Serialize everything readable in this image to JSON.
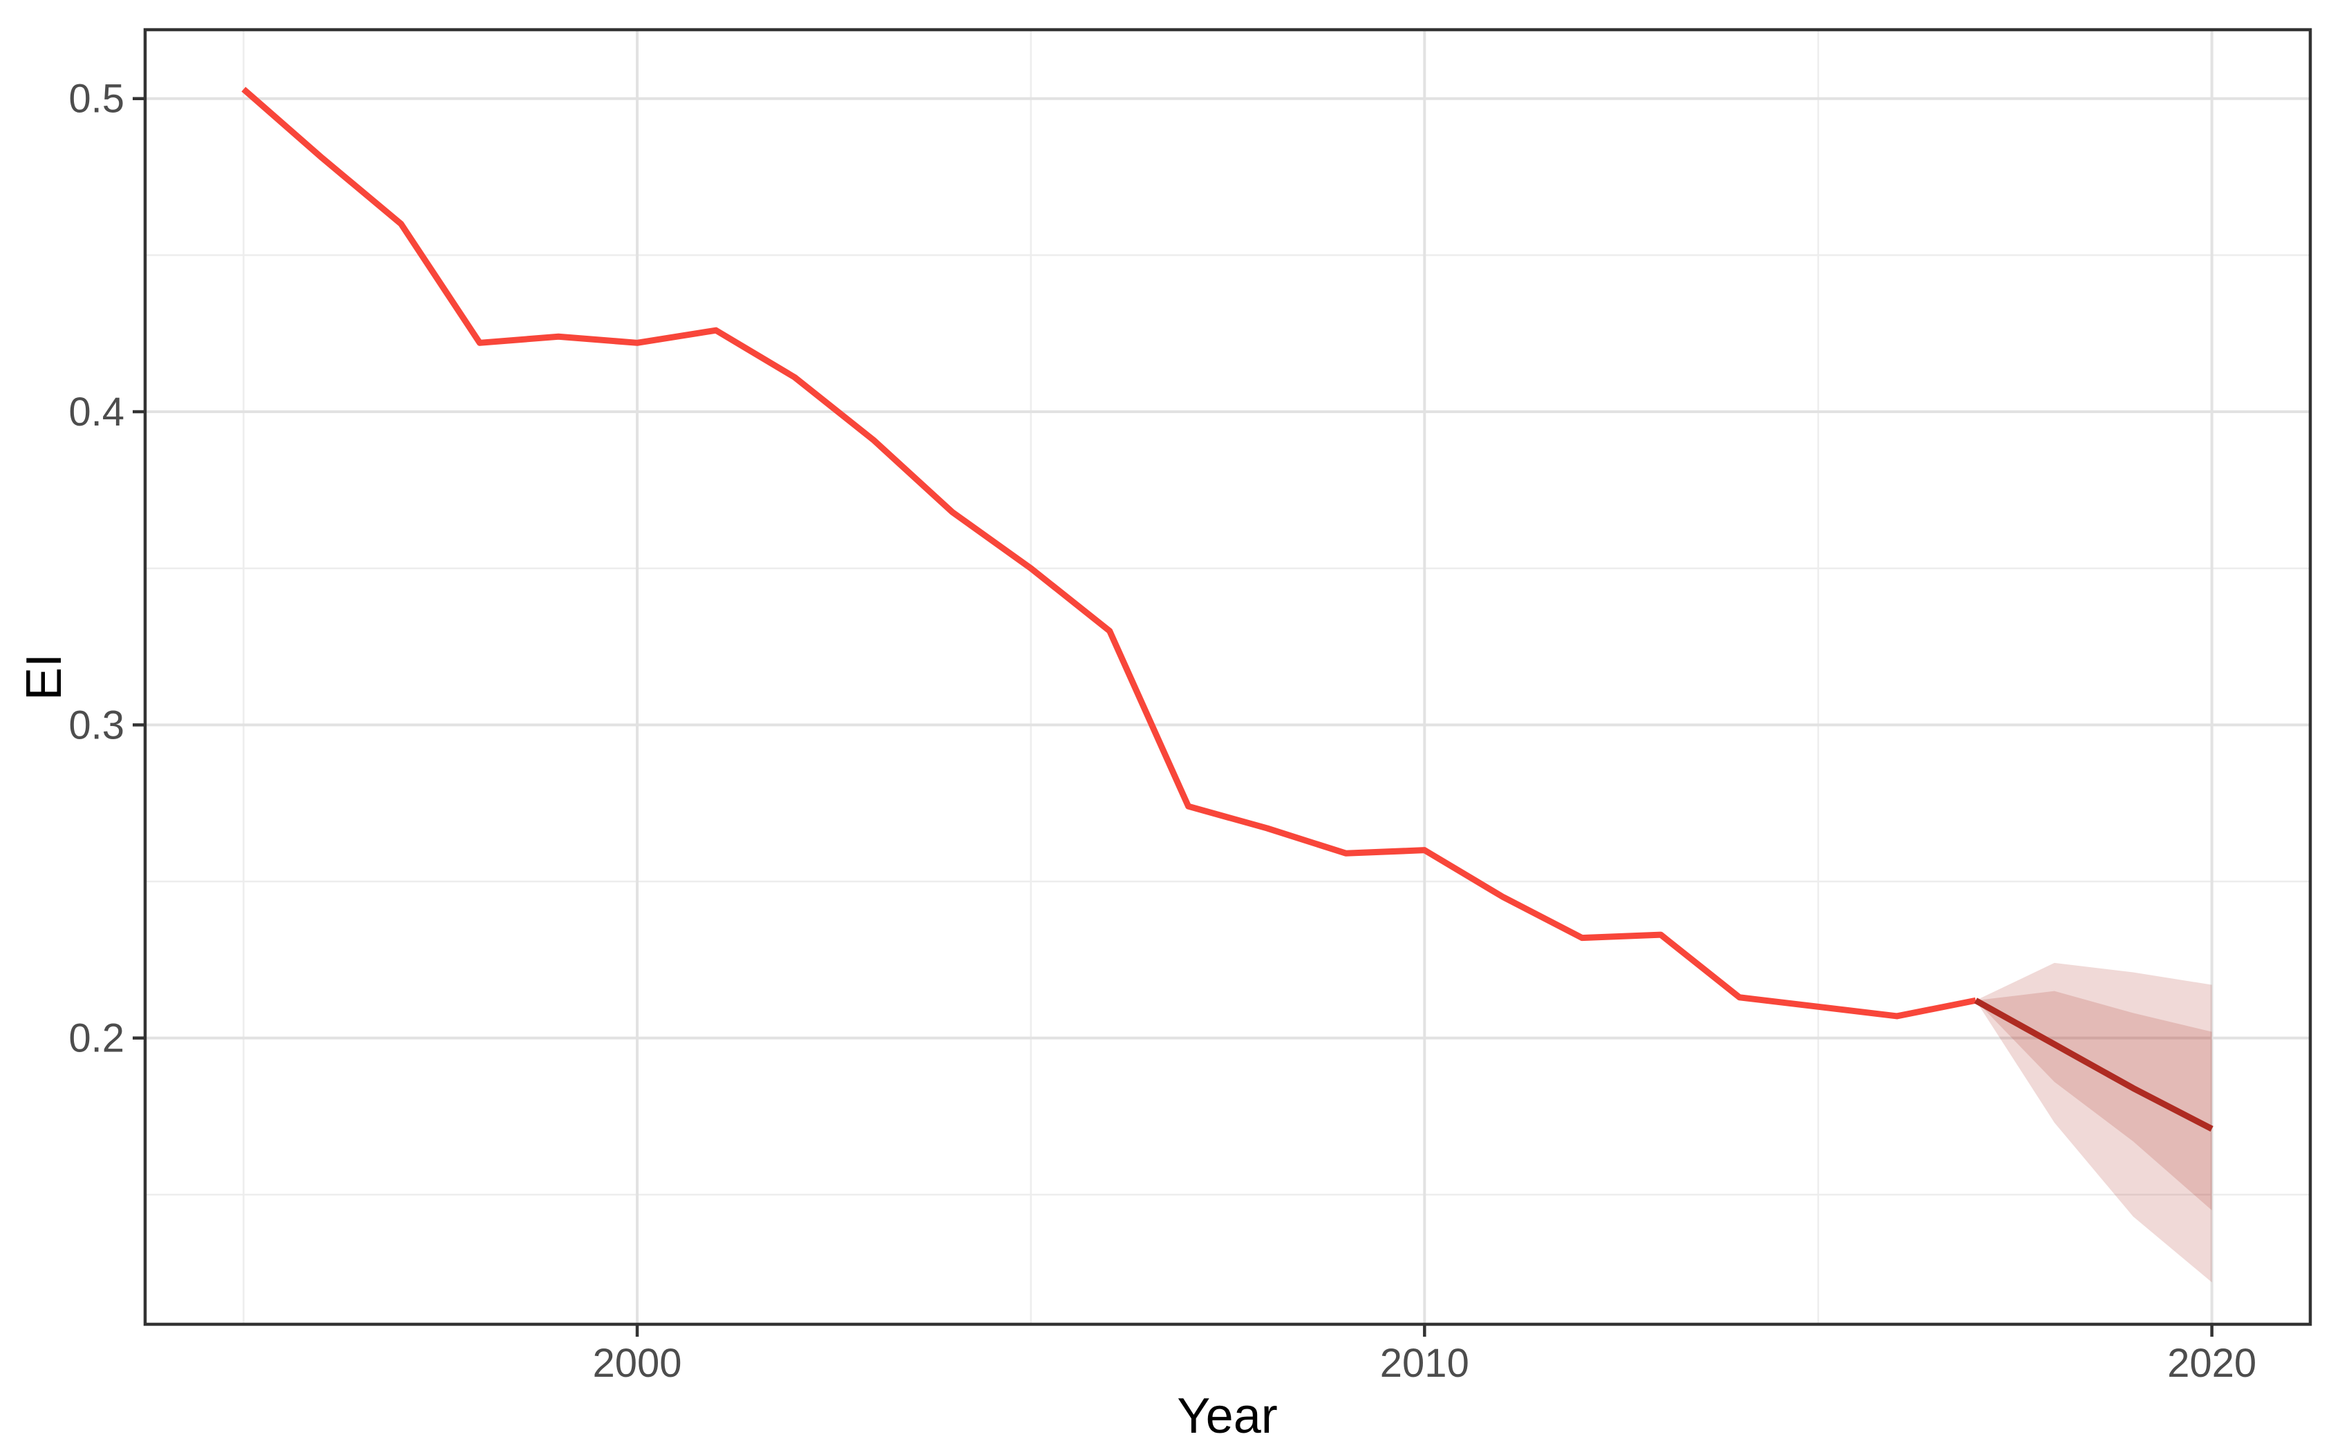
{
  "chart_data": {
    "type": "line",
    "title": "",
    "xlabel": "Year",
    "ylabel": "EI",
    "grid": true,
    "legend": false,
    "xlim": [
      1993.75,
      2021.25
    ],
    "ylim": [
      0.1086,
      0.522
    ],
    "axes": {
      "x_major_breaks": [
        2000,
        2010,
        2020
      ],
      "x_major_labels": [
        "2000",
        "2010",
        "2020"
      ],
      "x_minor_breaks": [
        1995,
        2005,
        2015
      ],
      "y_major_breaks": [
        0.5,
        0.4,
        0.3,
        0.2
      ],
      "y_major_labels": [
        "0.5",
        "0.4",
        "0.3",
        "0.2"
      ],
      "y_minor_breaks": [
        0.45,
        0.35,
        0.25,
        0.15
      ]
    },
    "series": [
      {
        "name": "observed",
        "color": "#F8463A",
        "x": [
          1995,
          1996,
          1997,
          1998,
          1999,
          2000,
          2001,
          2002,
          2003,
          2004,
          2005,
          2006,
          2007,
          2008,
          2009,
          2010,
          2011,
          2012,
          2013,
          2014,
          2015,
          2016,
          2017
        ],
        "y": [
          0.503,
          0.481,
          0.46,
          0.422,
          0.424,
          0.422,
          0.426,
          0.411,
          0.391,
          0.368,
          0.35,
          0.33,
          0.274,
          0.267,
          0.259,
          0.26,
          0.245,
          0.232,
          0.233,
          0.213,
          0.21,
          0.207,
          0.212
        ]
      },
      {
        "name": "forecast-mean",
        "color": "#AE2B22",
        "x": [
          2017,
          2018,
          2019,
          2020
        ],
        "y": [
          0.212,
          0.198,
          0.184,
          0.171
        ]
      }
    ],
    "bands": [
      {
        "name": "95-percent-interval",
        "fill": "rgba(174, 45, 35, 0.18)",
        "x": [
          2017,
          2018,
          2019,
          2020
        ],
        "hi": [
          0.212,
          0.224,
          0.221,
          0.217
        ],
        "lo": [
          0.212,
          0.173,
          0.143,
          0.122
        ]
      },
      {
        "name": "80-percent-interval",
        "fill": "rgba(174, 45, 35, 0.18)",
        "x": [
          2017,
          2018,
          2019,
          2020
        ],
        "hi": [
          0.212,
          0.215,
          0.208,
          0.202
        ],
        "lo": [
          0.212,
          0.186,
          0.167,
          0.145
        ]
      }
    ],
    "style": {
      "panel_background": "#FFFFFF",
      "panel_border_color": "#333333",
      "grid_major_color": "#E2E2E2",
      "grid_minor_color": "#EDEDED",
      "tick_color": "#333333",
      "tick_label_color": "#4D4D4D",
      "axis_title_color": "#000000"
    }
  }
}
